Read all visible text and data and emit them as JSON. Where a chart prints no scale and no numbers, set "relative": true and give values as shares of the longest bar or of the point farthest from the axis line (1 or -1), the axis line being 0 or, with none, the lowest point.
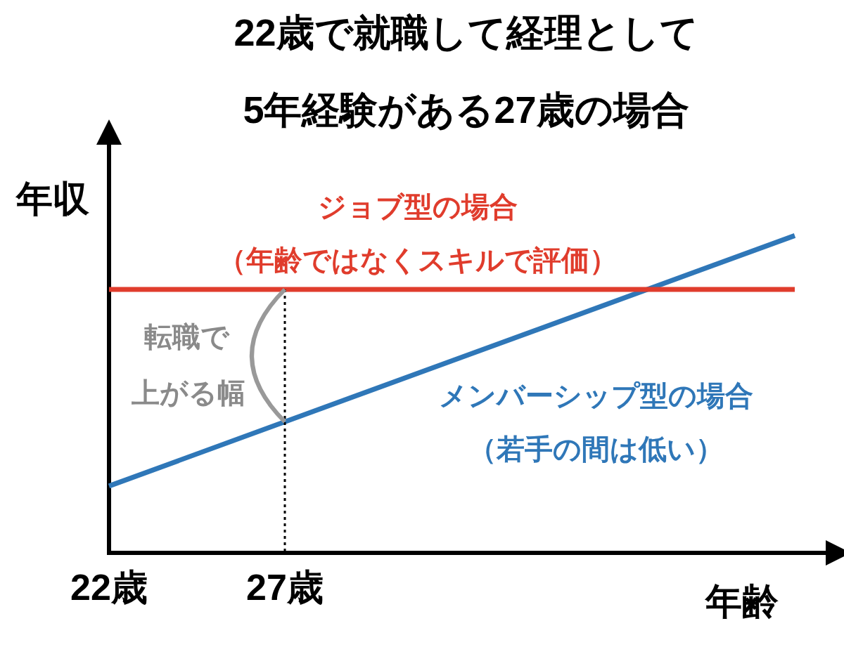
{
  "chart_data": {
    "type": "line",
    "title": "22歳で就職して経理として\n5年経験がある27歳の場合",
    "xlabel": "年齢",
    "ylabel": "年収",
    "relative": true,
    "xlim": [
      22,
      42.5
    ],
    "xticks": [
      {
        "value": 22,
        "label": "22歳"
      },
      {
        "value": 27,
        "label": "27歳"
      }
    ],
    "tick_labels": "x",
    "grid": false,
    "legend": false,
    "x": [
      22,
      41.5
    ],
    "marker": "none",
    "line_style": "solid",
    "series": [
      {
        "name": "ジョブ型の場合（年齢ではなくスキルで評価）",
        "color": "#e03c2c",
        "values": [
          0.83,
          0.83
        ]
      },
      {
        "name": "メンバーシップ型の場合（若手の間は低い）",
        "color": "#2f77b8",
        "values": [
          0.21,
          1
        ]
      }
    ],
    "ref_lines": [
      {
        "axis": "x",
        "value": 27,
        "color": "#000000",
        "line_style": "dotted"
      }
    ],
    "annotations": [
      "転職で",
      "上がる幅"
    ]
  }
}
